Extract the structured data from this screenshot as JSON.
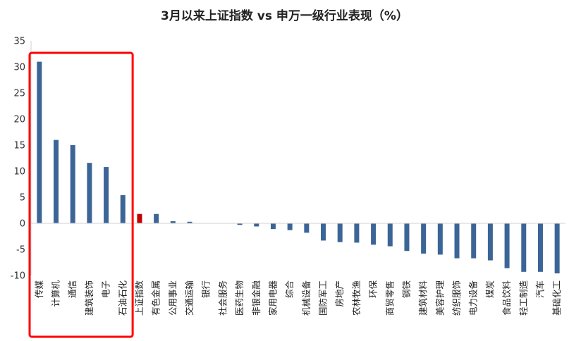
{
  "chart_data": {
    "type": "bar",
    "title": "3月以来上证指数 vs 申万一级行业表现（%）",
    "xlabel": "",
    "ylabel": "",
    "ylim": [
      -10,
      35
    ],
    "yticks": [
      35,
      30,
      25,
      20,
      15,
      10,
      5,
      0,
      -5,
      -10
    ],
    "grid": false,
    "legend": "none",
    "bar_color": "#3B6596",
    "highlight_color": "#C00000",
    "highlight_category": "上证指数",
    "box_color": "#FF0000",
    "boxed_categories": [
      "传媒",
      "计算机",
      "通信",
      "建筑装饰",
      "电子",
      "石油石化"
    ],
    "categories": [
      "传媒",
      "计算机",
      "通信",
      "建筑装饰",
      "电子",
      "石油石化",
      "上证指数",
      "有色金属",
      "公用事业",
      "交通运输",
      "银行",
      "社会服务",
      "医药生物",
      "非银金融",
      "家用电器",
      "综合",
      "机械设备",
      "国防军工",
      "房地产",
      "农林牧渔",
      "环保",
      "商贸零售",
      "钢铁",
      "建筑材料",
      "美容护理",
      "纺织服饰",
      "电力设备",
      "煤炭",
      "食品饮料",
      "轻工制造",
      "汽车",
      "基础化工"
    ],
    "values": [
      31.0,
      16.0,
      15.0,
      11.6,
      10.8,
      5.4,
      1.8,
      1.8,
      0.4,
      0.3,
      0.0,
      0.0,
      -0.3,
      -0.6,
      -1.1,
      -1.3,
      -1.8,
      -3.3,
      -3.6,
      -3.7,
      -4.1,
      -4.4,
      -5.3,
      -5.8,
      -6.0,
      -6.7,
      -6.7,
      -7.1,
      -8.6,
      -9.3,
      -9.3,
      -9.6
    ]
  }
}
